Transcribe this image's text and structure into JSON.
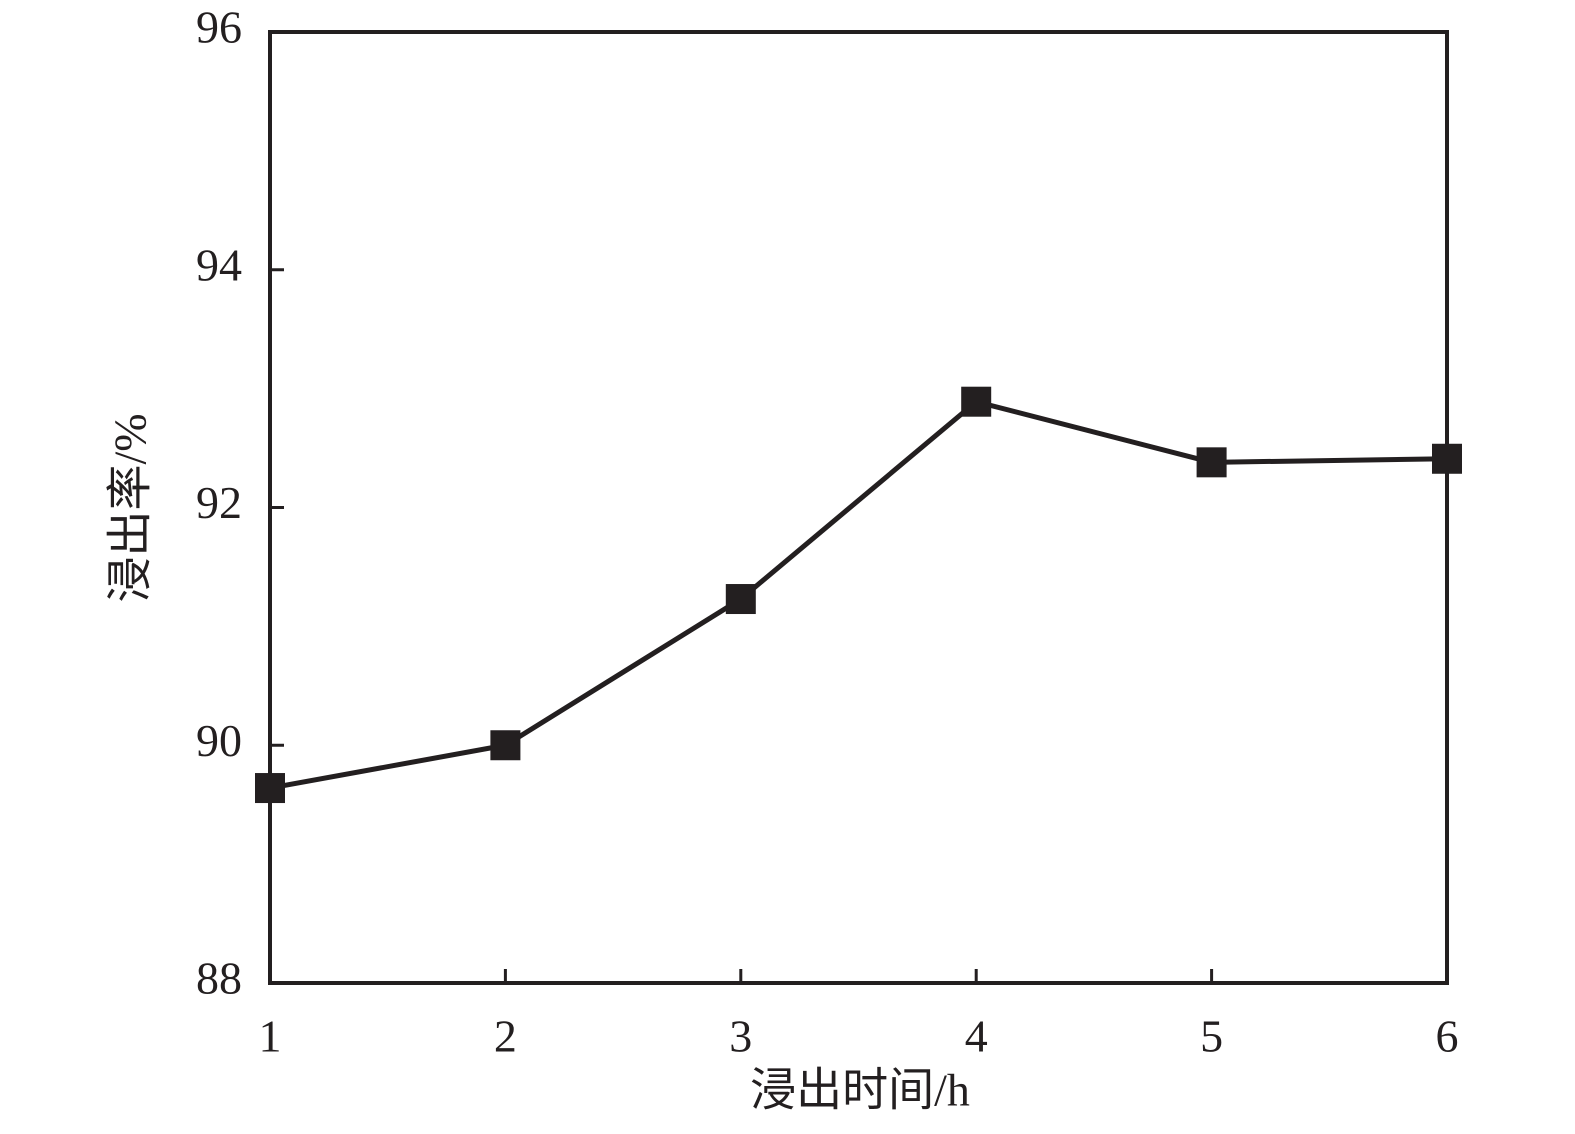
{
  "chart_data": {
    "type": "line",
    "x_label": "浸出时间/h",
    "y_label": "浸出率/%",
    "x": [
      1,
      2,
      3,
      4,
      5,
      6
    ],
    "values": [
      89.64,
      90.0,
      91.23,
      92.89,
      92.38,
      92.41
    ],
    "color": "#231f20",
    "xlim": [
      1,
      6
    ],
    "xticks": [
      1,
      2,
      3,
      4,
      5,
      6
    ],
    "ylim": [
      88,
      96
    ],
    "yticks": [
      88,
      90,
      92,
      94,
      96
    ],
    "marker": "square"
  }
}
